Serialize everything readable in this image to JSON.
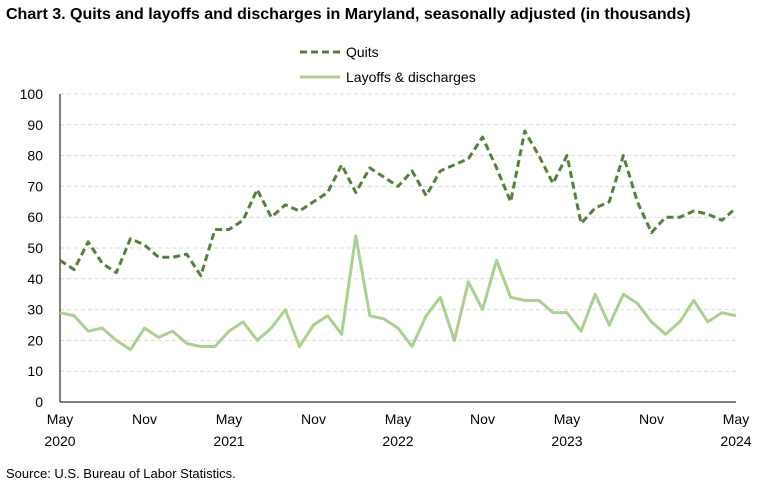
{
  "chart_data": {
    "type": "line",
    "title": "Chart 3. Quits and layoffs and discharges in Maryland, seasonally adjusted (in thousands)",
    "source": "Source: U.S. Bureau of Labor Statistics.",
    "ylim": [
      0,
      100
    ],
    "yticks": [
      0,
      10,
      20,
      30,
      40,
      50,
      60,
      70,
      80,
      90,
      100
    ],
    "grid": true,
    "legend_position": "top-center",
    "x": [
      "2020-05",
      "2020-06",
      "2020-07",
      "2020-08",
      "2020-09",
      "2020-10",
      "2020-11",
      "2020-12",
      "2021-01",
      "2021-02",
      "2021-03",
      "2021-04",
      "2021-05",
      "2021-06",
      "2021-07",
      "2021-08",
      "2021-09",
      "2021-10",
      "2021-11",
      "2021-12",
      "2022-01",
      "2022-02",
      "2022-03",
      "2022-04",
      "2022-05",
      "2022-06",
      "2022-07",
      "2022-08",
      "2022-09",
      "2022-10",
      "2022-11",
      "2022-12",
      "2023-01",
      "2023-02",
      "2023-03",
      "2023-04",
      "2023-05",
      "2023-06",
      "2023-07",
      "2023-08",
      "2023-09",
      "2023-10",
      "2023-11",
      "2023-12",
      "2024-01",
      "2024-02",
      "2024-03",
      "2024-04",
      "2024-05"
    ],
    "xticks": [
      {
        "month": "May",
        "year": "2020",
        "index": 0
      },
      {
        "month": "Nov",
        "year": "",
        "index": 6
      },
      {
        "month": "May",
        "year": "2021",
        "index": 12
      },
      {
        "month": "Nov",
        "year": "",
        "index": 18
      },
      {
        "month": "May",
        "year": "2022",
        "index": 24
      },
      {
        "month": "Nov",
        "year": "",
        "index": 30
      },
      {
        "month": "May",
        "year": "2023",
        "index": 36
      },
      {
        "month": "Nov",
        "year": "",
        "index": 42
      },
      {
        "month": "May",
        "year": "2024",
        "index": 48
      }
    ],
    "series": [
      {
        "name": "Quits",
        "color": "#548235",
        "style": "dashed",
        "values": [
          46,
          43,
          52,
          45,
          42,
          53,
          51,
          47,
          47,
          48,
          41,
          56,
          56,
          59,
          69,
          60,
          64,
          62,
          65,
          68,
          77,
          68,
          76,
          73,
          70,
          75,
          67,
          75,
          77,
          79,
          86,
          76,
          65,
          88,
          80,
          71,
          80,
          58,
          63,
          65,
          80,
          65,
          55,
          60,
          60,
          62,
          61,
          59,
          63
        ]
      },
      {
        "name": "Layoffs & discharges",
        "color": "#a9d18e",
        "style": "solid",
        "values": [
          29,
          28,
          23,
          24,
          20,
          17,
          24,
          21,
          23,
          19,
          18,
          18,
          23,
          26,
          20,
          24,
          30,
          18,
          25,
          28,
          22,
          54,
          28,
          27,
          24,
          18,
          28,
          34,
          20,
          39,
          30,
          46,
          34,
          33,
          33,
          29,
          29,
          23,
          35,
          25,
          35,
          32,
          26,
          22,
          26,
          33,
          26,
          29,
          28
        ]
      }
    ]
  }
}
